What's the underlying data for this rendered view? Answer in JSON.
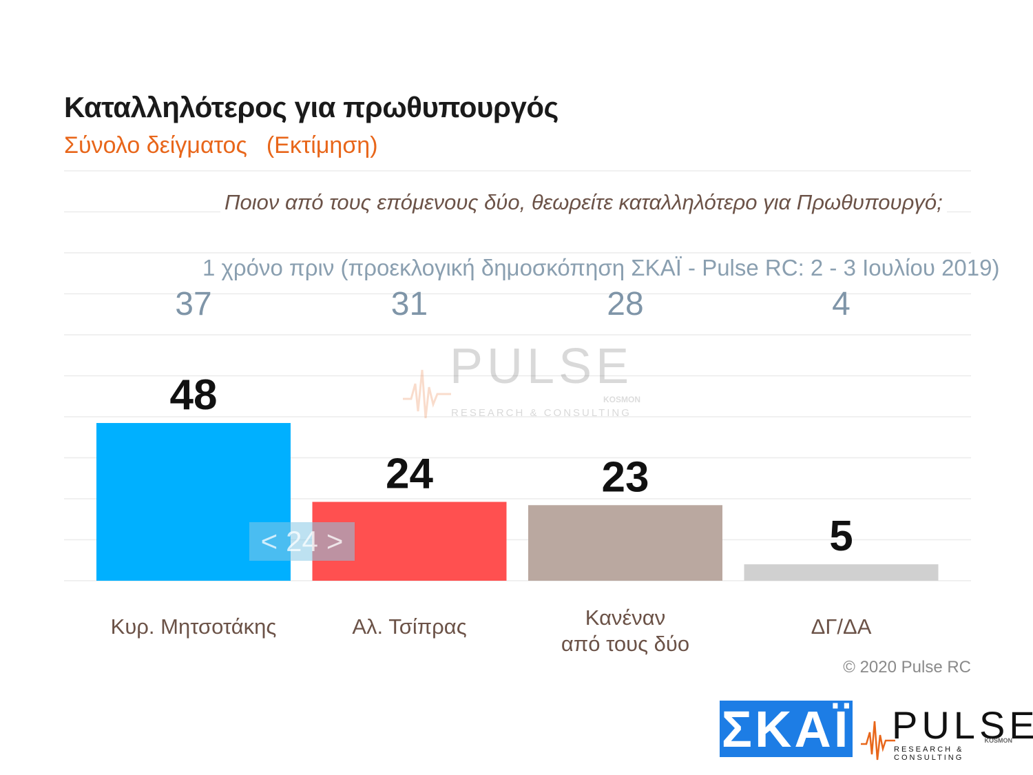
{
  "header": {
    "title": "Καταλληλότερος για πρωθυπουργός",
    "subtitle_left": "Σύνολο δείγματος",
    "subtitle_right": "(Εκτίμηση)"
  },
  "question": "Ποιον από τους επόμενους δύο, θεωρείτε καταλληλότερο για Πρωθυπουργό;",
  "previous_note": "1 χρόνο πριν (προεκλογική δημοσκόπηση ΣΚΑΪ - Pulse RC:  2 - 3 Ιουλίου 2019)",
  "chart_data": {
    "type": "bar",
    "categories": [
      "Κυρ. Μητσοτάκης",
      "Αλ. Τσίπρας",
      "Κανέναν\nαπό τους δύο",
      "ΔΓ/ΔΑ"
    ],
    "values": [
      48,
      24,
      23,
      5
    ],
    "previous_values": [
      37,
      31,
      28,
      4
    ],
    "colors": [
      "#00b0ff",
      "#ff5050",
      "#baa8a0",
      "#d0d0d0"
    ],
    "ylim": [
      0,
      100
    ],
    "grid": true
  },
  "pager": {
    "prev": "<",
    "page": "24",
    "next": ">"
  },
  "copyright": "© 2020 Pulse RC",
  "logos": {
    "skai": "ΣΚΑΪ",
    "pulse": "PULSE",
    "pulse_tag": "RESEARCH & CONSULTING",
    "pulse_kosmon": "KOSMON"
  }
}
